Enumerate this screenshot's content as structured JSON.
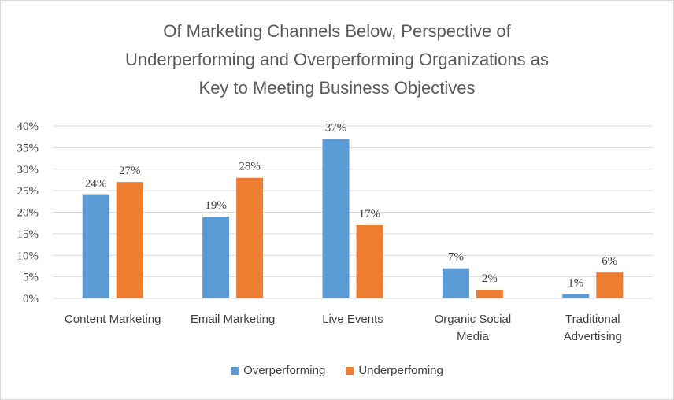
{
  "chart_data": {
    "type": "bar",
    "title_lines": [
      "Of Marketing Channels Below, Perspective of",
      "Underperforming  and Overperforming Organizations as",
      "Key to Meeting Business Objectives"
    ],
    "categories": [
      [
        "Content Marketing"
      ],
      [
        "Email Marketing"
      ],
      [
        "Live Events"
      ],
      [
        "Organic Social",
        "Media"
      ],
      [
        "Traditional",
        "Advertising"
      ]
    ],
    "series": [
      {
        "name": "Overperforming",
        "color": "#5b9bd5",
        "values": [
          24,
          19,
          37,
          7,
          1
        ],
        "labels": [
          "24%",
          "19%",
          "37%",
          "7%",
          "1%"
        ]
      },
      {
        "name": "Underperfoming",
        "color": "#ed7d31",
        "values": [
          27,
          28,
          17,
          2,
          6
        ],
        "labels": [
          "27%",
          "28%",
          "17%",
          "2%",
          "6%"
        ]
      }
    ],
    "ylim": [
      0,
      40
    ],
    "yticks": [
      0,
      5,
      10,
      15,
      20,
      25,
      30,
      35,
      40
    ],
    "ytick_labels": [
      "0%",
      "5%",
      "10%",
      "15%",
      "20%",
      "25%",
      "30%",
      "35%",
      "40%"
    ],
    "grid": true,
    "legend_position": "bottom"
  }
}
